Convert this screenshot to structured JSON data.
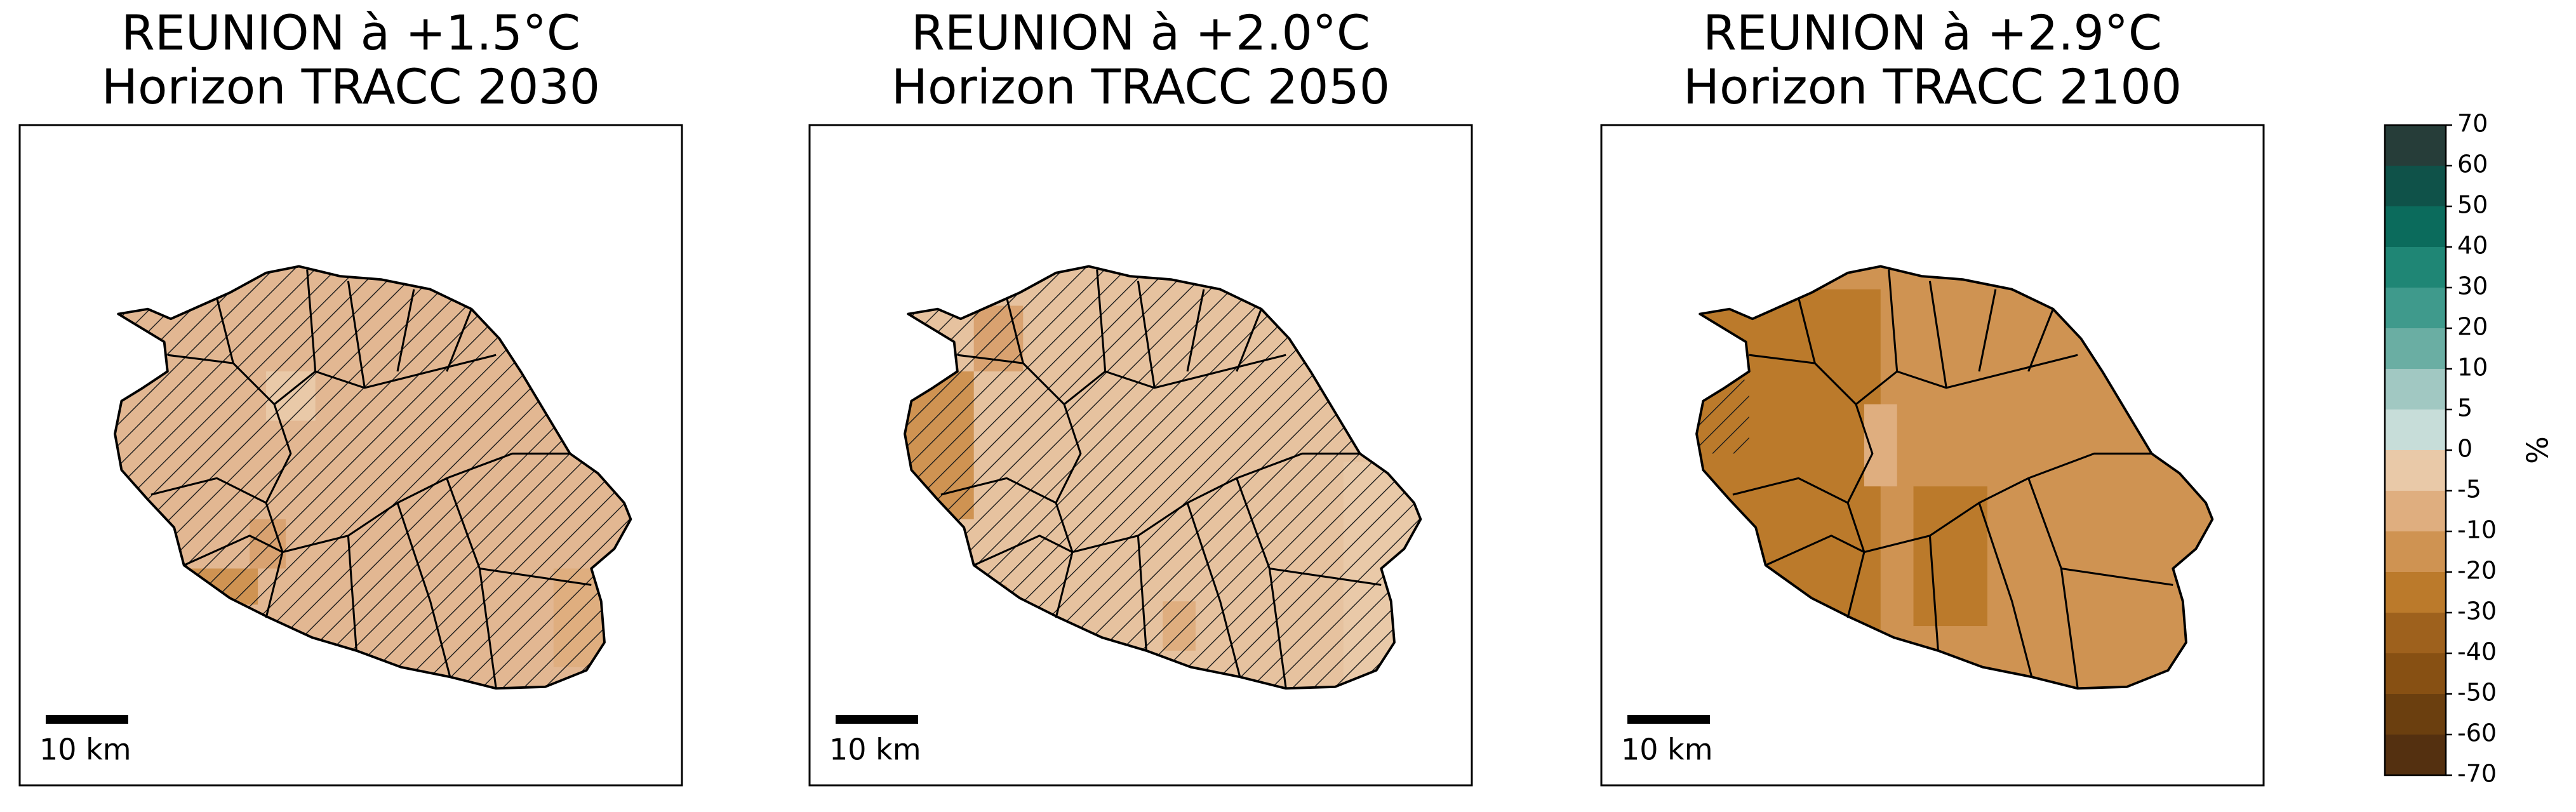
{
  "panels": [
    {
      "title_line1": "REUNION à +1.5°C",
      "title_line2": "Horizon TRACC 2030",
      "scale_bar": "10 km"
    },
    {
      "title_line1": "REUNION à +2.0°C",
      "title_line2": "Horizon TRACC 2050",
      "scale_bar": "10 km"
    },
    {
      "title_line1": "REUNION à +2.9°C",
      "title_line2": "Horizon TRACC 2100",
      "scale_bar": "10 km"
    }
  ],
  "colorbar": {
    "label": "%",
    "ticks": [
      70,
      60,
      50,
      40,
      30,
      20,
      10,
      5,
      0,
      -5,
      -10,
      -20,
      -30,
      -40,
      -50,
      -60,
      -70
    ],
    "colors": [
      "#263d39",
      "#0f5249",
      "#0b6b5c",
      "#1f8675",
      "#3f9a8c",
      "#6aaea3",
      "#a1c8c2",
      "#c7ddd9",
      "#e9c9a8",
      "#dfae7f",
      "#cf9352",
      "#bb7a2b",
      "#9e611d",
      "#875013",
      "#6b3f0f",
      "#543010"
    ]
  }
}
